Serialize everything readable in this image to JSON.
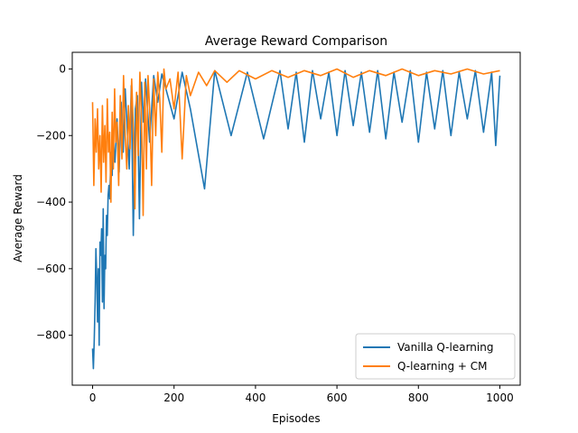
{
  "colors": {
    "series_1": "#1f77b4",
    "series_2": "#ff7f0e",
    "axes": "#000000",
    "background": "#ffffff"
  },
  "chart_data": {
    "type": "line",
    "title": "Average Reward Comparison",
    "xlabel": "Episodes",
    "ylabel": "Average Reward",
    "xlim": [
      -50,
      1050
    ],
    "ylim": [
      -950,
      50
    ],
    "xticks": [
      0,
      200,
      400,
      600,
      800,
      1000
    ],
    "xtick_labels": [
      "0",
      "200",
      "400",
      "600",
      "800",
      "1000"
    ],
    "yticks": [
      0,
      -200,
      -400,
      -600,
      -800
    ],
    "ytick_labels": [
      "0",
      "−200",
      "−400",
      "−600",
      "−800"
    ],
    "grid": false,
    "legend_position": "lower-right",
    "series": [
      {
        "name": "Vanilla Q-learning",
        "color": "#1f77b4",
        "x": [
          0,
          2,
          4,
          6,
          8,
          10,
          12,
          14,
          16,
          18,
          20,
          22,
          24,
          26,
          28,
          30,
          32,
          34,
          36,
          38,
          40,
          42,
          44,
          46,
          48,
          50,
          55,
          60,
          65,
          70,
          75,
          80,
          85,
          90,
          95,
          100,
          105,
          110,
          115,
          120,
          125,
          130,
          140,
          150,
          160,
          170,
          180,
          200,
          220,
          240,
          275,
          300,
          340,
          380,
          420,
          460,
          480,
          500,
          520,
          540,
          560,
          580,
          600,
          620,
          640,
          660,
          680,
          700,
          720,
          740,
          760,
          780,
          800,
          820,
          840,
          860,
          880,
          900,
          920,
          940,
          960,
          980,
          990,
          1000
        ],
        "y": [
          -840,
          -900,
          -820,
          -700,
          -540,
          -620,
          -760,
          -600,
          -830,
          -520,
          -560,
          -480,
          -700,
          -420,
          -720,
          -560,
          -600,
          -440,
          -500,
          -380,
          -350,
          -390,
          -300,
          -250,
          -320,
          -200,
          -280,
          -150,
          -310,
          -100,
          -250,
          -60,
          -180,
          -300,
          -50,
          -500,
          -120,
          -80,
          -450,
          -40,
          -160,
          -30,
          -220,
          -20,
          -100,
          -15,
          -60,
          -150,
          -10,
          -120,
          -360,
          -5,
          -200,
          -10,
          -210,
          -5,
          -180,
          -10,
          -220,
          -5,
          -150,
          -10,
          -200,
          -5,
          -170,
          -10,
          -190,
          -5,
          -210,
          -10,
          -160,
          -5,
          -220,
          -10,
          -180,
          -5,
          -200,
          -10,
          -150,
          -5,
          -190,
          -10,
          -230,
          -20
        ]
      },
      {
        "name": "Q-learning + CM",
        "color": "#ff7f0e",
        "x": [
          0,
          3,
          6,
          9,
          12,
          15,
          18,
          21,
          24,
          27,
          30,
          33,
          36,
          39,
          42,
          45,
          48,
          51,
          54,
          57,
          60,
          64,
          68,
          72,
          76,
          80,
          84,
          88,
          92,
          96,
          100,
          104,
          108,
          112,
          116,
          120,
          124,
          128,
          132,
          136,
          140,
          145,
          150,
          155,
          160,
          165,
          170,
          175,
          180,
          190,
          200,
          210,
          220,
          230,
          240,
          260,
          280,
          300,
          330,
          360,
          400,
          440,
          480,
          520,
          560,
          600,
          640,
          680,
          720,
          760,
          800,
          840,
          880,
          920,
          960,
          1000
        ],
        "y": [
          -100,
          -350,
          -150,
          -250,
          -120,
          -300,
          -200,
          -370,
          -110,
          -280,
          -170,
          -340,
          -90,
          -250,
          -190,
          -400,
          -130,
          -300,
          -60,
          -220,
          -160,
          -350,
          -80,
          -270,
          -20,
          -200,
          -300,
          -110,
          -240,
          -30,
          -180,
          -420,
          -70,
          -260,
          -10,
          -150,
          -440,
          -40,
          -300,
          -20,
          -120,
          -350,
          -30,
          -200,
          -10,
          -90,
          -250,
          0,
          -60,
          -30,
          -120,
          -10,
          -270,
          -20,
          -80,
          -10,
          -50,
          -5,
          -40,
          -5,
          -30,
          -5,
          -25,
          -5,
          -20,
          0,
          -25,
          -5,
          -20,
          0,
          -20,
          -5,
          -15,
          0,
          -15,
          -5
        ]
      }
    ]
  }
}
